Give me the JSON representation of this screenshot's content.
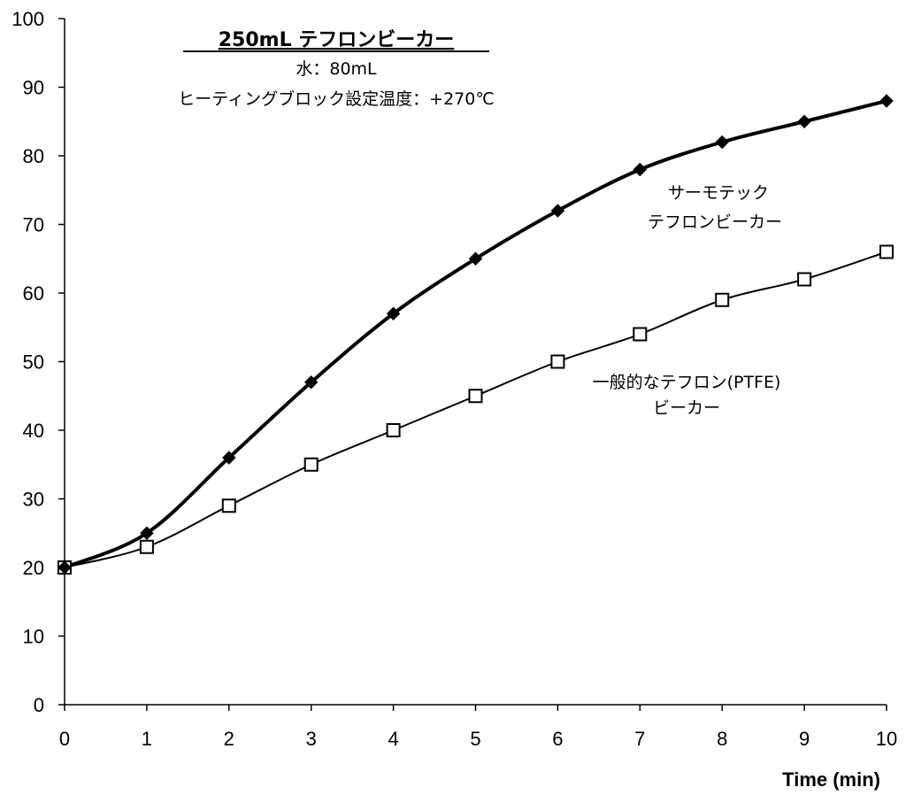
{
  "chart_data": {
    "type": "line",
    "title": "250mL テフロンビーカー",
    "subtitle_lines": [
      "水：80mL",
      "ヒーティングブロック設定温度：+270℃"
    ],
    "xlabel": "Time (min)",
    "ylabel": "",
    "xlim": [
      0,
      10
    ],
    "ylim": [
      0,
      100
    ],
    "x_ticks": [
      "0",
      "1",
      "2",
      "3",
      "4",
      "5",
      "6",
      "7",
      "8",
      "9",
      "10"
    ],
    "y_ticks": [
      "0",
      "10",
      "20",
      "30",
      "40",
      "50",
      "60",
      "70",
      "80",
      "90",
      "100"
    ],
    "grid": false,
    "x": [
      0,
      1,
      2,
      3,
      4,
      5,
      6,
      7,
      8,
      9,
      10
    ],
    "series": [
      {
        "key": "thermotec",
        "label_lines": [
          "サーモテック",
          "テフロンビーカー"
        ],
        "marker": "filled-diamond",
        "line_style": "thick",
        "values": [
          20,
          25,
          36,
          47,
          57,
          65,
          72,
          78,
          82,
          85,
          88
        ]
      },
      {
        "key": "ptfe",
        "label_lines": [
          "一般的なテフロン(PTFE)",
          "ビーカー"
        ],
        "marker": "open-square",
        "line_style": "thin",
        "values": [
          20,
          23,
          29,
          35,
          40,
          45,
          50,
          54,
          59,
          62,
          66
        ]
      }
    ]
  }
}
